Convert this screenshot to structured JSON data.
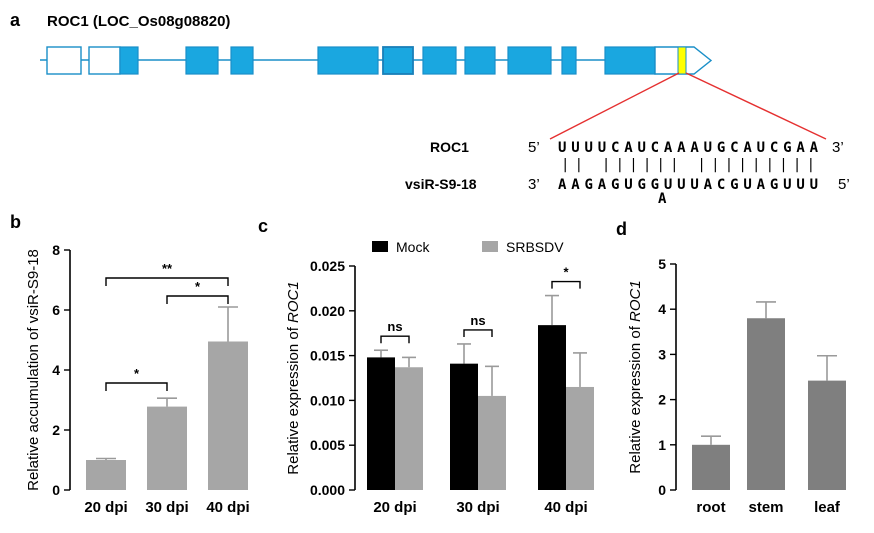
{
  "panel_a": {
    "panel_letter": "a",
    "gene_title": "ROC1 (LOC_Os08g08820)",
    "roc1_label": "ROC1",
    "roc1_5p": "5’",
    "roc1_seq": "UUUUCAUCAAAUGCAUCGAA",
    "roc1_3p": "3’",
    "pairing": "|| |||||| |||||||||",
    "vsir_label": "vsiR-S9-18",
    "vsir_3p": "3’",
    "vsir_seq": "AAGAGUGGUUUACGUAGUUU",
    "vsir_5p": "5’",
    "bulge": "A",
    "colors": {
      "exon": "#1aa7e0",
      "utr": "#ffffff",
      "outline": "#1a8fc8",
      "target": "#ffff00",
      "link_line": "#e53030"
    }
  },
  "chart_data": [
    {
      "panel": "b",
      "type": "bar",
      "categories": [
        "20 dpi",
        "30 dpi",
        "40 dpi"
      ],
      "values": [
        1.0,
        2.78,
        4.95
      ],
      "errors": [
        0.05,
        0.28,
        1.15
      ],
      "ylabel": "Relative accumulation of vsiR-S9-18",
      "ylim": [
        0,
        8
      ],
      "yticks": [
        "0",
        "2",
        "4",
        "6",
        "8"
      ],
      "bar_color": "#a6a6a6",
      "significance": [
        {
          "from": "20 dpi",
          "to": "30 dpi",
          "label": "*"
        },
        {
          "from": "30 dpi",
          "to": "40 dpi",
          "label": "*"
        },
        {
          "from": "20 dpi",
          "to": "40 dpi",
          "label": "**"
        }
      ]
    },
    {
      "panel": "c",
      "type": "bar",
      "categories": [
        "20 dpi",
        "30 dpi",
        "40 dpi"
      ],
      "series": [
        {
          "name": "Mock",
          "color": "#000000",
          "values": [
            0.0148,
            0.0141,
            0.0184
          ],
          "errors": [
            0.0008,
            0.0022,
            0.0033
          ]
        },
        {
          "name": "SRBSDV",
          "color": "#a6a6a6",
          "values": [
            0.0137,
            0.0105,
            0.0115
          ],
          "errors": [
            0.0011,
            0.0033,
            0.0038
          ]
        }
      ],
      "ylabel_prefix": "Relative expression of ",
      "ylabel_gene": "ROC1",
      "ylim": [
        0,
        0.025
      ],
      "yticks": [
        "0.000",
        "0.005",
        "0.010",
        "0.015",
        "0.020",
        "0.025"
      ],
      "legend_position": "top",
      "significance": [
        "ns",
        "ns",
        "*"
      ]
    },
    {
      "panel": "d",
      "type": "bar",
      "categories": [
        "root",
        "stem",
        "leaf"
      ],
      "values": [
        1.0,
        3.8,
        2.42
      ],
      "errors": [
        0.19,
        0.36,
        0.55
      ],
      "ylabel_prefix": "Relative expression of ",
      "ylabel_gene": "ROC1",
      "ylim": [
        0,
        5
      ],
      "yticks": [
        "0",
        "1",
        "2",
        "3",
        "4",
        "5"
      ],
      "bar_color": "#7f7f7f"
    }
  ]
}
